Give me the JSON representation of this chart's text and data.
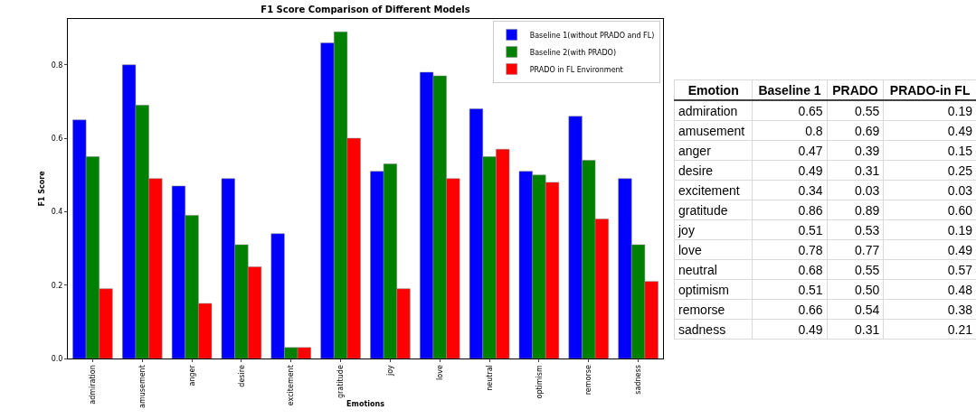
{
  "chart_data": [
    {
      "type": "bar",
      "title": "F1 Score Comparison of Different Models",
      "xlabel": "Emotions",
      "ylabel": "F1 Score",
      "categories": [
        "admiration",
        "amusement",
        "anger",
        "desire",
        "excitement",
        "gratitude",
        "joy",
        "love",
        "neutral",
        "optimism",
        "remorse",
        "sadness"
      ],
      "series": [
        {
          "name": "Baseline 1(without PRADO and FL)",
          "color": "#0000ff",
          "values": [
            0.65,
            0.8,
            0.47,
            0.49,
            0.34,
            0.86,
            0.51,
            0.78,
            0.68,
            0.51,
            0.66,
            0.49
          ]
        },
        {
          "name": "Baseline 2(with PRADO)",
          "color": "#008000",
          "values": [
            0.55,
            0.69,
            0.39,
            0.31,
            0.03,
            0.89,
            0.53,
            0.77,
            0.55,
            0.5,
            0.54,
            0.31
          ]
        },
        {
          "name": "PRADO in FL Environment",
          "color": "#ff0000",
          "values": [
            0.19,
            0.49,
            0.15,
            0.25,
            0.03,
            0.6,
            0.19,
            0.49,
            0.57,
            0.48,
            0.38,
            0.21
          ]
        }
      ],
      "ylim": [
        0,
        0.925
      ],
      "yticks": [
        {
          "value": 0,
          "label": "0.0"
        },
        {
          "value": 0.2,
          "label": "0.2"
        },
        {
          "value": 0.4,
          "label": "0.4"
        },
        {
          "value": 0.6,
          "label": "0.6"
        },
        {
          "value": 0.8,
          "label": "0.8"
        }
      ],
      "grid": false,
      "legend": "top right"
    },
    {
      "type": "other",
      "annotations": [
        "Emotion",
        "Baseline 1",
        "PRADO",
        "PRADO-in FL",
        "admiration",
        "0.65",
        "0.55",
        "0.19",
        "amusement",
        "0.8",
        "0.69",
        "0.49",
        "anger",
        "0.47",
        "0.39",
        "0.15",
        "desire",
        "0.49",
        "0.31",
        "0.25",
        "excitement",
        "0.34",
        "0.03",
        "0.03",
        "gratitude",
        "0.86",
        "0.89",
        "0.60",
        "joy",
        "0.51",
        "0.53",
        "0.19",
        "love",
        "0.78",
        "0.77",
        "0.49",
        "neutral",
        "0.68",
        "0.55",
        "0.57",
        "optimism",
        "0.51",
        "0.50",
        "0.48",
        "remorse",
        "0.66",
        "0.54",
        "0.38",
        "sadness",
        "0.49",
        "0.31",
        "0.21"
      ]
    }
  ]
}
